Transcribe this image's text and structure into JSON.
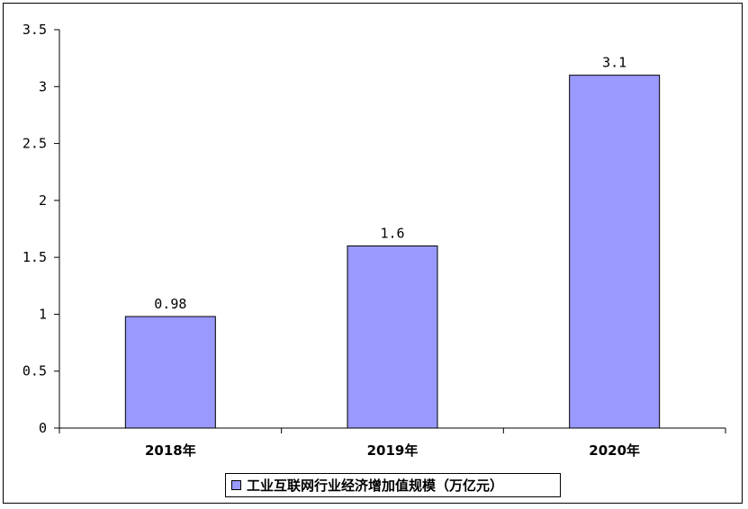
{
  "chart_data": {
    "type": "bar",
    "categories": [
      "2018年",
      "2019年",
      "2020年"
    ],
    "series": [
      {
        "name": "工业互联网行业经济增加值规模（万亿元）",
        "values": [
          0.98,
          1.6,
          3.1
        ]
      }
    ],
    "data_labels": [
      "0.98",
      "1.6",
      "3.1"
    ],
    "yticks": [
      "0",
      "0.5",
      "1",
      "1.5",
      "2",
      "2.5",
      "3",
      "3.5"
    ],
    "ylim": [
      0,
      3.5
    ],
    "grid": false,
    "legend_position": "bottom",
    "colors": {
      "bar": "#9999ff",
      "border": "#000000"
    }
  }
}
